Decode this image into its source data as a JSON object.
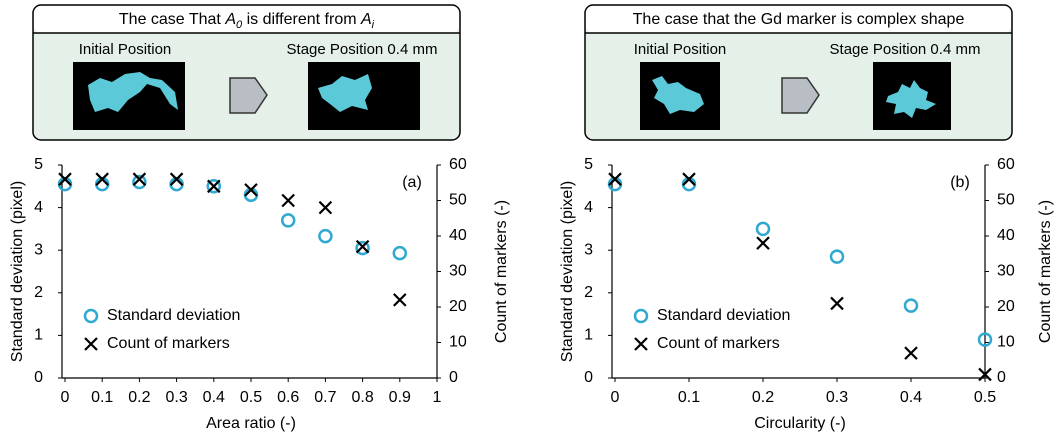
{
  "chart_data": [
    {
      "type": "scatter",
      "panel_title": [
        "The case That ",
        "A",
        "0",
        " is different from ",
        "A",
        "i"
      ],
      "captions": [
        "Initial Position",
        "Stage Position 0.4 mm"
      ],
      "annotation": "(a)",
      "xlabel": "Area ratio (-)",
      "ylabel": "Standard deviation (pixel)",
      "y2label": "Count of markers (-)",
      "x": [
        0,
        0.1,
        0.2,
        0.3,
        0.4,
        0.5,
        0.6,
        0.7,
        0.8,
        0.9
      ],
      "series": [
        {
          "name": "Standard deviation",
          "color": "#2fa9d0",
          "marker": "circle",
          "values": [
            4.55,
            4.55,
            4.6,
            4.55,
            4.5,
            4.3,
            3.7,
            3.33,
            3.05,
            2.93
          ]
        },
        {
          "name": "Count of markers",
          "color": "#000000",
          "marker": "x",
          "axis": "y2",
          "values": [
            56,
            56,
            56,
            56,
            54,
            53,
            50,
            48,
            37,
            22
          ]
        }
      ],
      "xlim": [
        0,
        1
      ],
      "xticks": [
        0,
        0.1,
        0.2,
        0.3,
        0.4,
        0.5,
        0.6,
        0.7,
        0.8,
        0.9,
        1
      ],
      "ylim": [
        0,
        5
      ],
      "yticks": [
        0,
        1,
        2,
        3,
        4,
        5
      ],
      "y2lim": [
        0,
        60
      ],
      "y2ticks": [
        0,
        10,
        20,
        30,
        40,
        50,
        60
      ],
      "legend": "lower-left"
    },
    {
      "type": "scatter",
      "panel_title": [
        "The case that the Gd marker is complex shape"
      ],
      "captions": [
        "Initial Position",
        "Stage Position 0.4 mm"
      ],
      "annotation": "(b)",
      "xlabel": "Circularity (-)",
      "ylabel": "Standard deviation (pixel)",
      "y2label": "Count of markers (-)",
      "x": [
        0,
        0.1,
        0.2,
        0.3,
        0.4,
        0.5
      ],
      "series": [
        {
          "name": "Standard deviation",
          "color": "#2fa9d0",
          "marker": "circle",
          "values": [
            4.55,
            4.55,
            3.5,
            2.85,
            1.7,
            0.9
          ]
        },
        {
          "name": "Count of markers",
          "color": "#000000",
          "marker": "x",
          "axis": "y2",
          "values": [
            56,
            56,
            38,
            21,
            7,
            1
          ]
        }
      ],
      "xlim": [
        0,
        0.5
      ],
      "xticks": [
        0,
        0.1,
        0.2,
        0.3,
        0.4,
        0.5
      ],
      "ylim": [
        0,
        5
      ],
      "yticks": [
        0,
        1,
        2,
        3,
        4,
        5
      ],
      "y2lim": [
        0,
        60
      ],
      "y2ticks": [
        0,
        10,
        20,
        30,
        40,
        50,
        60
      ],
      "legend": "lower-left"
    }
  ]
}
